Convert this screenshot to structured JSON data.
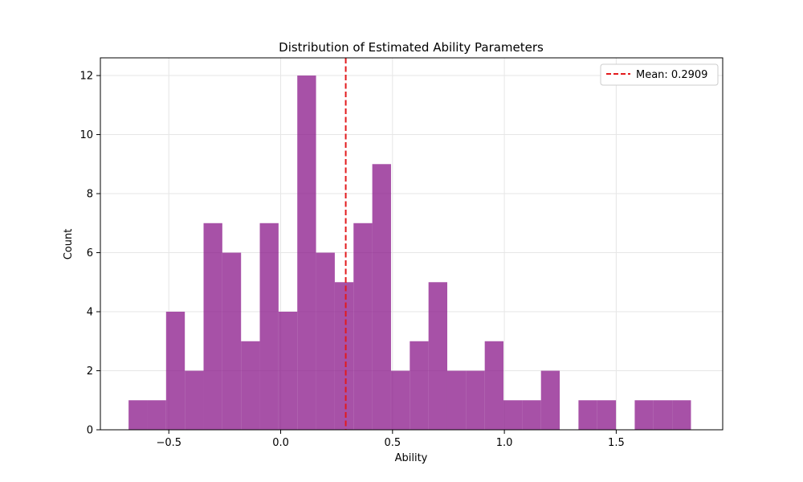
{
  "chart_data": {
    "type": "bar",
    "title": "Distribution of Estimated Ability Parameters",
    "xlabel": "Ability",
    "ylabel": "Count",
    "bins": {
      "start": -0.6799,
      "width": 0.0838,
      "counts": [
        1,
        1,
        4,
        2,
        7,
        6,
        3,
        7,
        4,
        12,
        6,
        5,
        7,
        9,
        2,
        3,
        5,
        2,
        2,
        3,
        1,
        1,
        2,
        0,
        1,
        1,
        0,
        1,
        1,
        1
      ]
    },
    "xlim": [
      -0.806,
      1.976
    ],
    "ylim": [
      0,
      12.6
    ],
    "xticks": [
      -0.5,
      0.0,
      0.5,
      1.0,
      1.5
    ],
    "xtick_labels": [
      "−0.5",
      "0.0",
      "0.5",
      "1.0",
      "1.5"
    ],
    "yticks": [
      0,
      2,
      4,
      6,
      8,
      10,
      12
    ],
    "ytick_labels": [
      "0",
      "2",
      "4",
      "6",
      "8",
      "10",
      "12"
    ],
    "grid": true,
    "mean_line": {
      "value": 0.2909,
      "label": "Mean: 0.2909"
    },
    "legend": {
      "placement": "top-right"
    },
    "colors": {
      "bar": "#8b1a8b",
      "bar_opacity": 0.76,
      "mean": "#e31a1c",
      "grid": "#e6e6e6"
    }
  }
}
